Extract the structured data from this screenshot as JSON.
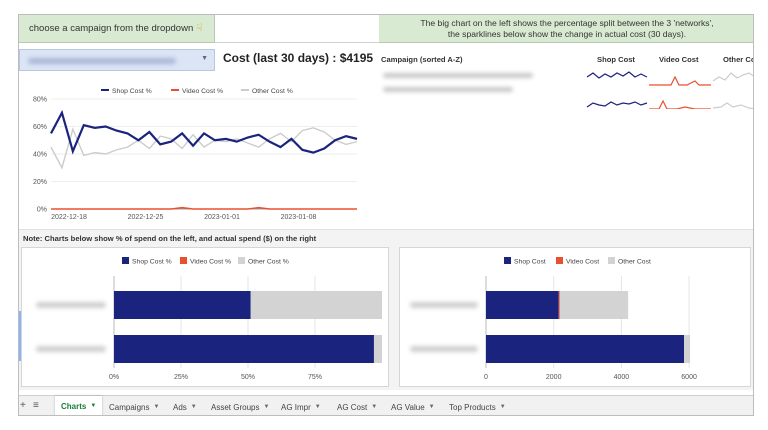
{
  "banner": {
    "left_text": "choose a campaign from the dropdown",
    "right_line1": "The big chart on the left shows the percentage split between the 3 'networks',",
    "right_line2": "the sparklines below show the change in actual cost (30 days)."
  },
  "summary": {
    "cost_text": "Cost (last 30 days) : $4195"
  },
  "sparklines": {
    "headers": [
      "Campaign (sorted A-Z)",
      "Shop Cost",
      "Video Cost",
      "Other Cost"
    ],
    "colors": {
      "shop": "#1a237e",
      "video": "#e8502f",
      "other": "#cccccc"
    }
  },
  "note": "Note: Charts below show % of spend on the left, and actual spend ($) on the right",
  "tabs": [
    {
      "label": "Charts",
      "active": true
    },
    {
      "label": "Campaigns",
      "active": false
    },
    {
      "label": "Ads",
      "active": false
    },
    {
      "label": "Asset Groups",
      "active": false
    },
    {
      "label": "AG Impr",
      "active": false
    },
    {
      "label": "AG Cost",
      "active": false
    },
    {
      "label": "AG Value",
      "active": false
    },
    {
      "label": "Top Products",
      "active": false
    }
  ],
  "icons": {
    "add": "plus-icon",
    "menu": "hamburger-icon",
    "hint": "pointing-hand-icon"
  },
  "chart_data": [
    {
      "type": "line",
      "title": "",
      "legend_position": "top",
      "ylim": [
        0,
        80
      ],
      "yticks": [
        "0%",
        "20%",
        "40%",
        "60%",
        "80%"
      ],
      "xticks": [
        "2022-12-18",
        "2022-12-25",
        "2023-01-01",
        "2023-01-08"
      ],
      "series": [
        {
          "name": "Shop Cost %",
          "color": "#1a237e",
          "values": [
            55,
            70,
            42,
            61,
            59,
            60,
            57,
            55,
            50,
            56,
            47,
            49,
            55,
            46,
            55,
            50,
            51,
            49,
            52,
            54,
            49,
            45,
            51,
            43,
            41,
            44,
            50,
            53,
            51
          ]
        },
        {
          "name": "Video Cost %",
          "color": "#e8502f",
          "values": [
            0,
            0,
            0,
            0,
            0,
            0,
            0,
            0,
            0,
            0,
            0,
            0,
            1,
            0,
            0,
            0,
            0,
            0,
            0,
            1,
            0,
            0,
            0,
            0,
            0,
            0,
            0,
            0,
            0
          ]
        },
        {
          "name": "Other Cost %",
          "color": "#cccccc",
          "values": [
            45,
            30,
            58,
            39,
            41,
            40,
            43,
            45,
            50,
            44,
            53,
            51,
            44,
            54,
            45,
            50,
            49,
            51,
            48,
            45,
            51,
            55,
            49,
            57,
            59,
            56,
            50,
            47,
            49
          ]
        }
      ]
    },
    {
      "type": "bar",
      "orientation": "horizontal",
      "stacked": true,
      "legend_position": "top",
      "xticks": [
        "0%",
        "25%",
        "50%",
        "75%"
      ],
      "xlim": [
        0,
        100
      ],
      "series": [
        {
          "name": "Shop Cost %",
          "color": "#1a237e",
          "values": [
            51,
            97
          ]
        },
        {
          "name": "Video Cost %",
          "color": "#e8502f",
          "values": [
            0,
            0
          ]
        },
        {
          "name": "Other Cost %",
          "color": "#d3d3d3",
          "values": [
            49,
            3
          ]
        }
      ]
    },
    {
      "type": "bar",
      "orientation": "horizontal",
      "stacked": true,
      "legend_position": "top",
      "xticks": [
        "0",
        "2000",
        "4000",
        "6000"
      ],
      "xlim": [
        0,
        6500
      ],
      "series": [
        {
          "name": "Shop Cost",
          "color": "#1a237e",
          "values": [
            2150,
            5850
          ]
        },
        {
          "name": "Video Cost",
          "color": "#e8502f",
          "values": [
            30,
            0
          ]
        },
        {
          "name": "Other Cost",
          "color": "#d3d3d3",
          "values": [
            2020,
            180
          ]
        }
      ]
    }
  ]
}
